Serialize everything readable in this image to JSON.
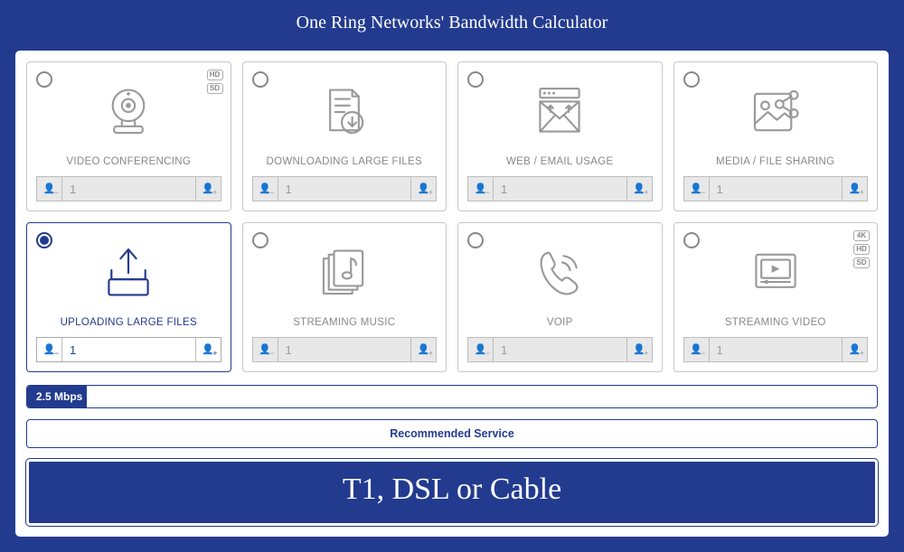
{
  "title": "One Ring Networks' Bandwidth Calculator",
  "colors": {
    "brand": "#233b8e",
    "inactive_text": "#888888",
    "inactive_border": "#c7c7c7",
    "input_bg_inactive": "#e8e8e8",
    "white": "#ffffff"
  },
  "cards": [
    {
      "id": "video-conf",
      "label": "VIDEO CONFERENCING",
      "value": "1",
      "active": false,
      "badges": [
        "HD",
        "SD"
      ]
    },
    {
      "id": "download",
      "label": "DOWNLOADING LARGE FILES",
      "value": "1",
      "active": false,
      "badges": []
    },
    {
      "id": "web-email",
      "label": "WEB / EMAIL USAGE",
      "value": "1",
      "active": false,
      "badges": []
    },
    {
      "id": "media-share",
      "label": "MEDIA / FILE SHARING",
      "value": "1",
      "active": false,
      "badges": []
    },
    {
      "id": "upload",
      "label": "UPLOADING LARGE FILES",
      "value": "1",
      "active": true,
      "badges": []
    },
    {
      "id": "music",
      "label": "STREAMING MUSIC",
      "value": "1",
      "active": false,
      "badges": []
    },
    {
      "id": "voip",
      "label": "VOIP",
      "value": "1",
      "active": false,
      "badges": []
    },
    {
      "id": "video-stream",
      "label": "STREAMING VIDEO",
      "value": "1",
      "active": false,
      "badges": [
        "4K",
        "HD",
        "SD"
      ]
    }
  ],
  "slider": {
    "label": "2.5 Mbps",
    "fill_percent": 7
  },
  "recommended_label": "Recommended Service",
  "result": "T1, DSL or Cable"
}
